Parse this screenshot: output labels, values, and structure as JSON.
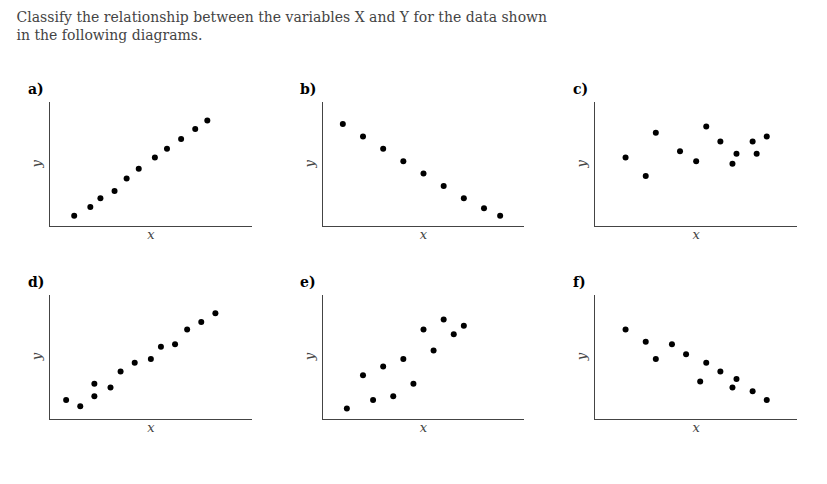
{
  "title": "Classify the relationship between the variables X and Y for the data shown\nin the following diagrams.",
  "chart_data": [
    {
      "type": "scatter",
      "title": "a)",
      "x_label": "x",
      "y_label": "y",
      "x": [
        0.12,
        0.2,
        0.25,
        0.32,
        0.38,
        0.44,
        0.52,
        0.58,
        0.65,
        0.72,
        0.78
      ],
      "values": [
        0.08,
        0.15,
        0.22,
        0.28,
        0.38,
        0.46,
        0.55,
        0.62,
        0.7,
        0.78,
        0.85
      ],
      "color": "#000000",
      "xlim": [
        0,
        1
      ],
      "ylim": [
        0,
        1
      ],
      "grid": false,
      "tick_labels": false
    },
    {
      "type": "scatter",
      "title": "b)",
      "x_label": "x",
      "y_label": "y",
      "x": [
        0.1,
        0.2,
        0.3,
        0.4,
        0.5,
        0.6,
        0.7,
        0.8,
        0.88
      ],
      "values": [
        0.82,
        0.72,
        0.62,
        0.52,
        0.42,
        0.32,
        0.22,
        0.14,
        0.08
      ],
      "color": "#000000",
      "xlim": [
        0,
        1
      ],
      "ylim": [
        0,
        1
      ],
      "grid": false,
      "tick_labels": false
    },
    {
      "type": "scatter",
      "title": "c)",
      "x_label": "x",
      "y_label": "y",
      "x": [
        0.15,
        0.3,
        0.42,
        0.55,
        0.62,
        0.7,
        0.78,
        0.85,
        0.25,
        0.5,
        0.68,
        0.8
      ],
      "values": [
        0.55,
        0.75,
        0.6,
        0.8,
        0.68,
        0.58,
        0.68,
        0.72,
        0.4,
        0.52,
        0.5,
        0.58
      ],
      "color": "#000000",
      "xlim": [
        0,
        1
      ],
      "ylim": [
        0,
        1
      ],
      "grid": false,
      "tick_labels": false
    },
    {
      "type": "scatter",
      "title": "d)",
      "x_label": "x",
      "y_label": "y",
      "x": [
        0.08,
        0.15,
        0.22,
        0.22,
        0.3,
        0.35,
        0.42,
        0.5,
        0.55,
        0.62,
        0.68,
        0.75,
        0.82
      ],
      "values": [
        0.15,
        0.1,
        0.18,
        0.28,
        0.25,
        0.38,
        0.45,
        0.48,
        0.58,
        0.6,
        0.72,
        0.78,
        0.85
      ],
      "color": "#000000",
      "xlim": [
        0,
        1
      ],
      "ylim": [
        0,
        1
      ],
      "grid": false,
      "tick_labels": false
    },
    {
      "type": "scatter",
      "title": "e)",
      "x_label": "x",
      "y_label": "y",
      "x": [
        0.12,
        0.25,
        0.35,
        0.45,
        0.55,
        0.65,
        0.3,
        0.5,
        0.6,
        0.2,
        0.4,
        0.7
      ],
      "values": [
        0.08,
        0.15,
        0.18,
        0.28,
        0.55,
        0.68,
        0.42,
        0.72,
        0.8,
        0.35,
        0.48,
        0.75
      ],
      "color": "#000000",
      "xlim": [
        0,
        1
      ],
      "ylim": [
        0,
        1
      ],
      "grid": false,
      "tick_labels": false
    },
    {
      "type": "scatter",
      "title": "f)",
      "x_label": "x",
      "y_label": "y",
      "x": [
        0.15,
        0.25,
        0.38,
        0.45,
        0.55,
        0.62,
        0.7,
        0.78,
        0.85,
        0.3,
        0.52,
        0.68
      ],
      "values": [
        0.72,
        0.62,
        0.6,
        0.52,
        0.45,
        0.38,
        0.32,
        0.22,
        0.15,
        0.48,
        0.3,
        0.25
      ],
      "color": "#000000",
      "xlim": [
        0,
        1
      ],
      "ylim": [
        0,
        1
      ],
      "grid": false,
      "tick_labels": false
    }
  ]
}
